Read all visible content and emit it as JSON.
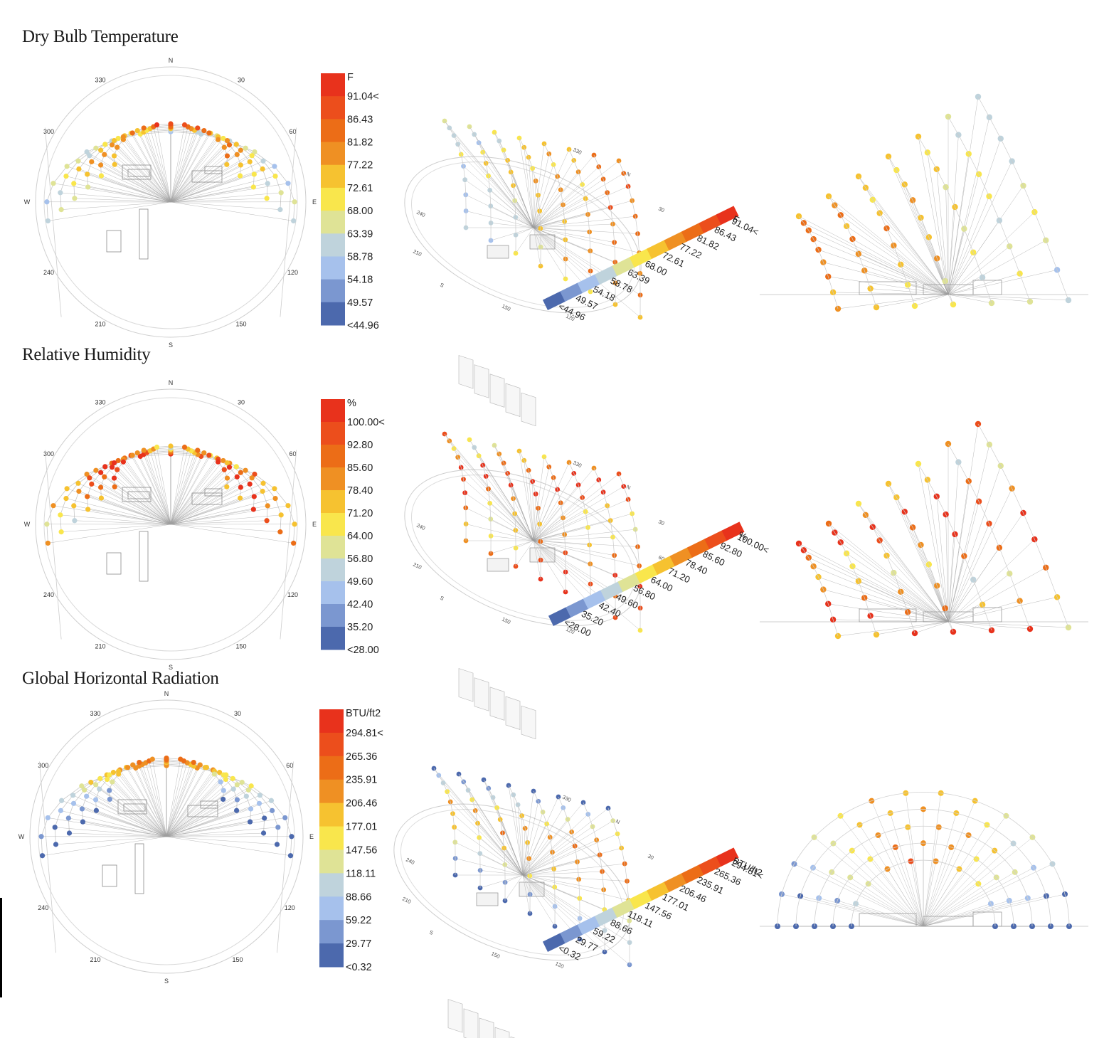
{
  "sections": [
    {
      "title": "Dry Bulb Temperature",
      "legend": {
        "unit": "F",
        "values": [
          "91.04<",
          "86.43",
          "81.82",
          "77.22",
          "72.61",
          "68.00",
          "63.39",
          "58.78",
          "54.18",
          "49.57",
          "<44.96"
        ]
      }
    },
    {
      "title": "Relative Humidity",
      "legend": {
        "unit": "%",
        "values": [
          "100.00<",
          "92.80",
          "85.60",
          "78.40",
          "71.20",
          "64.00",
          "56.80",
          "49.60",
          "42.40",
          "35.20",
          "<28.00"
        ]
      }
    },
    {
      "title": "Global Horizontal Radiation",
      "legend": {
        "unit": "BTU/ft2",
        "values": [
          "294.81<",
          "265.36",
          "235.91",
          "206.46",
          "177.01",
          "147.56",
          "118.11",
          "88.66",
          "59.22",
          "29.77",
          "<0.32"
        ]
      }
    }
  ],
  "compass": {
    "cardinals": {
      "n": "N",
      "e": "E",
      "s": "S",
      "w": "W"
    },
    "degrees": [
      "30",
      "60",
      "120",
      "150",
      "210",
      "240",
      "300",
      "330"
    ]
  },
  "colors": {
    "scale": [
      "#e8321c",
      "#ec4e1c",
      "#ec6d17",
      "#ef9023",
      "#f6c230",
      "#f9e64c",
      "#dfe396",
      "#bfd3dc",
      "#a6c1ec",
      "#7b97d0",
      "#4c69ad"
    ],
    "line": "#b5b5b5",
    "building": "#9a9a9a"
  }
}
